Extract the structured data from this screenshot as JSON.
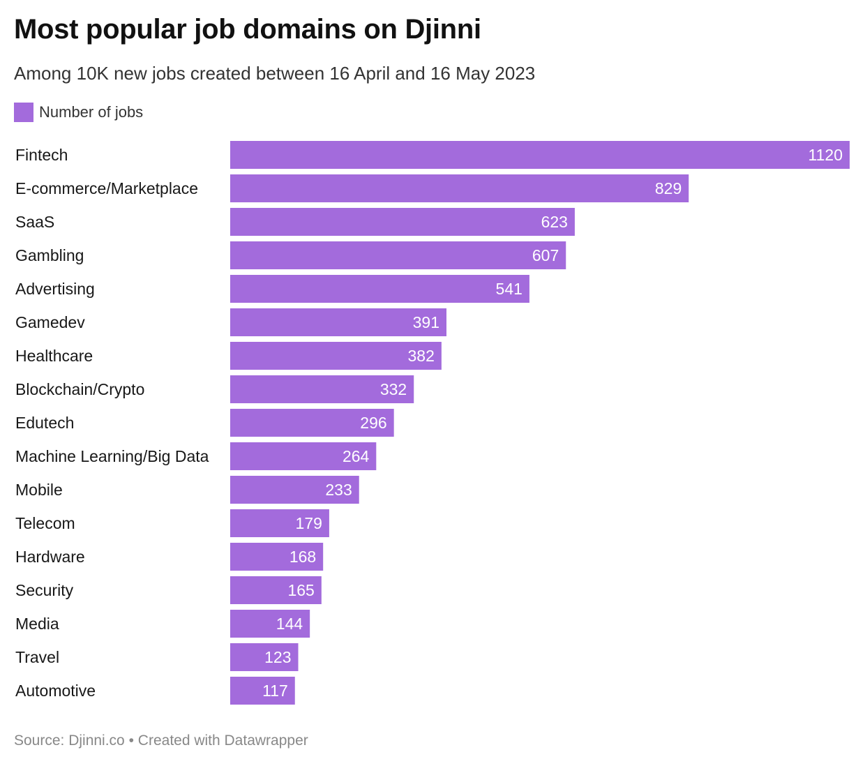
{
  "title": "Most popular job domains on Djinni",
  "subtitle": "Among 10K new jobs created between 16 April and 16 May 2023",
  "legend": {
    "label": "Number of jobs",
    "color": "#a36bdc"
  },
  "footer": {
    "source": "Source: Djinni.co",
    "separator": "•",
    "credit": "Created with Datawrapper"
  },
  "chart_data": {
    "type": "bar",
    "orientation": "horizontal",
    "categories": [
      "Fintech",
      "E-commerce/Marketplace",
      "SaaS",
      "Gambling",
      "Advertising",
      "Gamedev",
      "Healthcare",
      "Blockchain/Crypto",
      "Edutech",
      "Machine Learning/Big Data",
      "Mobile",
      "Telecom",
      "Hardware",
      "Security",
      "Media",
      "Travel",
      "Automotive"
    ],
    "series": [
      {
        "name": "Number of jobs",
        "color": "#a36bdc",
        "values": [
          1120,
          829,
          623,
          607,
          541,
          391,
          382,
          332,
          296,
          264,
          233,
          179,
          168,
          165,
          144,
          123,
          117
        ]
      }
    ],
    "xlim": [
      0,
      1120
    ],
    "grid": false,
    "legend_position": "top-left",
    "data_labels": "inside-end",
    "value_label_color": "#ffffff"
  }
}
